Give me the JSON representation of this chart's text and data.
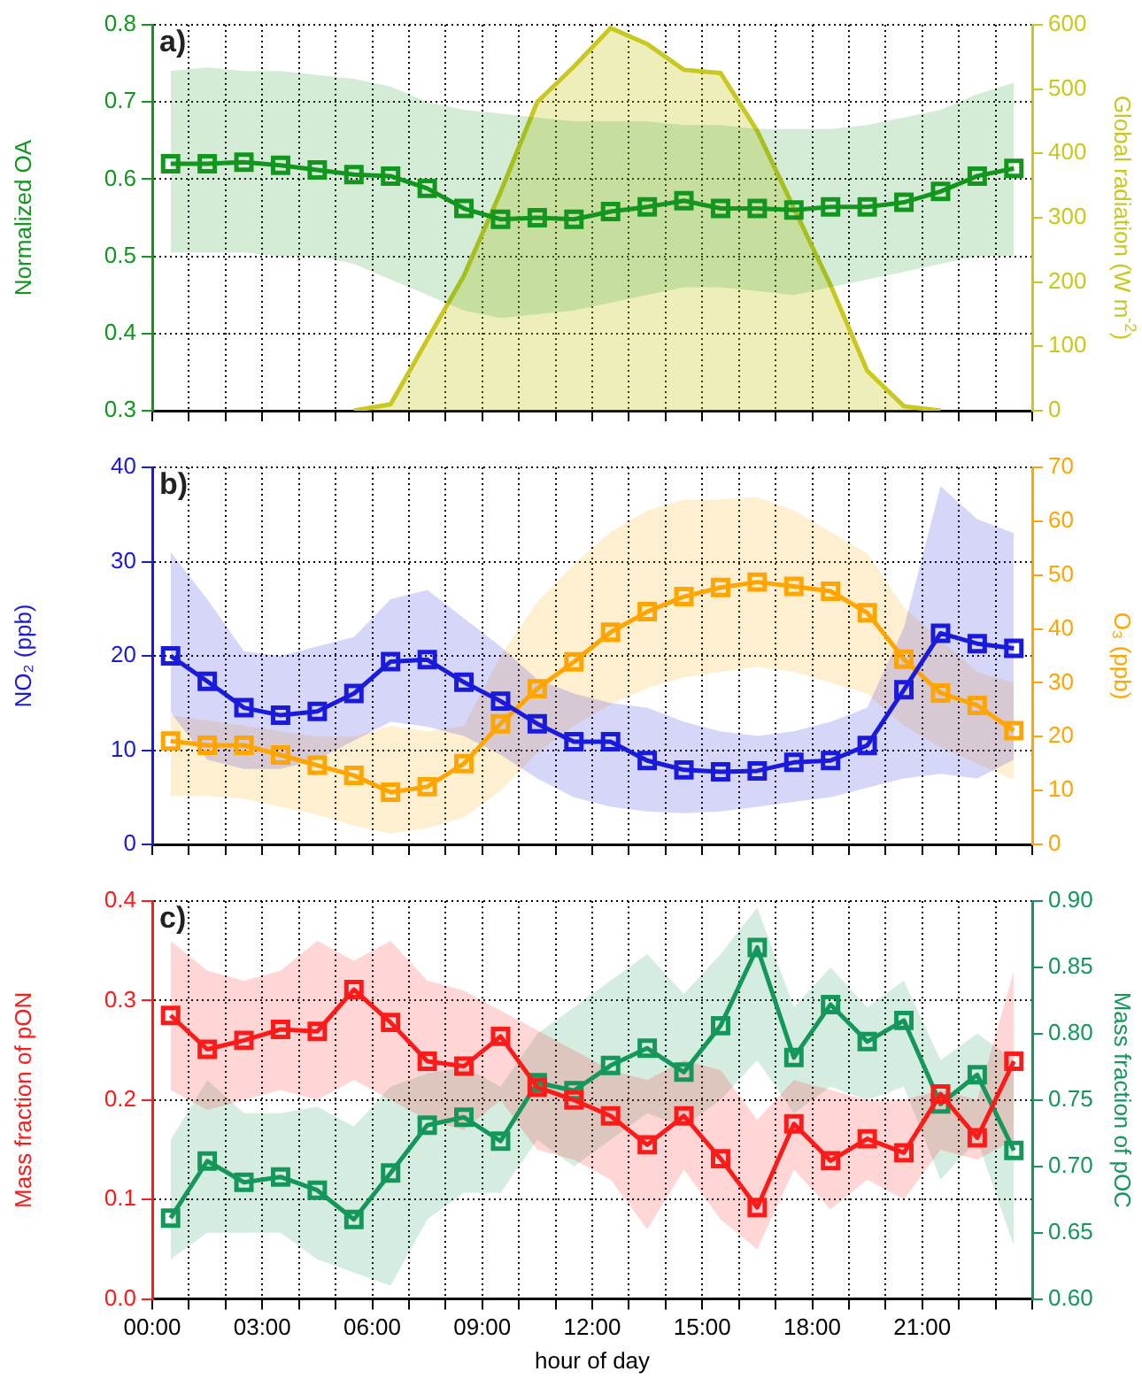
{
  "chart_data": [
    {
      "type": "line",
      "ylabel": "Normalized OA",
      "y2label": "Global radiation (W m$^{-2}$)",
      "annotations": [
        "a)"
      ],
      "x": [
        0.5,
        1.5,
        2.5,
        3.5,
        4.5,
        5.5,
        6.5,
        7.5,
        8.5,
        9.5,
        10.5,
        11.5,
        12.5,
        13.5,
        14.5,
        15.5,
        16.5,
        17.5,
        18.5,
        19.5,
        20.5,
        21.5,
        22.5,
        23.5
      ],
      "xlim": [
        0,
        24
      ],
      "xticks": [
        {
          "value": 0,
          "label": null
        },
        {
          "value": 1,
          "label": null
        },
        {
          "value": 2,
          "label": null
        },
        {
          "value": 3,
          "label": null
        },
        {
          "value": 4,
          "label": null
        },
        {
          "value": 5,
          "label": null
        },
        {
          "value": 6,
          "label": null
        },
        {
          "value": 7,
          "label": null
        },
        {
          "value": 8,
          "label": null
        },
        {
          "value": 9,
          "label": null
        },
        {
          "value": 10,
          "label": null
        },
        {
          "value": 11,
          "label": null
        },
        {
          "value": 12,
          "label": null
        },
        {
          "value": 13,
          "label": null
        },
        {
          "value": 14,
          "label": null
        },
        {
          "value": 15,
          "label": null
        },
        {
          "value": 16,
          "label": null
        },
        {
          "value": 17,
          "label": null
        },
        {
          "value": 18,
          "label": null
        },
        {
          "value": 19,
          "label": null
        },
        {
          "value": 20,
          "label": null
        },
        {
          "value": 21,
          "label": null
        },
        {
          "value": 22,
          "label": null
        },
        {
          "value": 23,
          "label": null
        },
        {
          "value": 24,
          "label": null
        }
      ],
      "ylim": [
        0.3,
        0.8
      ],
      "yticks": [
        0.3,
        0.4,
        0.5,
        0.6,
        0.7,
        0.8
      ],
      "y2lim": [
        0,
        600
      ],
      "y2ticks": [
        0,
        100,
        200,
        300,
        400,
        500,
        600
      ],
      "grid": true,
      "legend": false,
      "tick_labels": "y",
      "series": [
        {
          "type": "area",
          "axis": "y2",
          "marker": "none",
          "color": "#c8c81e",
          "x": [
            5.5,
            6.5,
            7.5,
            8.5,
            9.5,
            10.5,
            11.5,
            12.5,
            13.5,
            14.5,
            15.5,
            16.5,
            17.5,
            18.5,
            19.5,
            20.5,
            21.5
          ],
          "values": [
            0,
            10,
            110,
            210,
            340,
            480,
            535,
            595,
            570,
            530,
            525,
            435,
            315,
            195,
            62,
            7,
            0
          ]
        },
        {
          "type": "line",
          "axis": "y",
          "marker": "square",
          "color": "#12961e",
          "values": [
            0.62,
            0.62,
            0.622,
            0.618,
            0.612,
            0.606,
            0.604,
            0.588,
            0.562,
            0.548,
            0.55,
            0.548,
            0.558,
            0.564,
            0.572,
            0.562,
            0.562,
            0.56,
            0.564,
            0.564,
            0.57,
            0.584,
            0.604,
            0.614
          ],
          "lower": [
            0.505,
            0.505,
            0.505,
            0.5,
            0.5,
            0.49,
            0.47,
            0.45,
            0.43,
            0.42,
            0.425,
            0.43,
            0.44,
            0.45,
            0.46,
            0.46,
            0.455,
            0.45,
            0.46,
            0.47,
            0.48,
            0.49,
            0.5,
            0.5
          ],
          "upper": [
            0.74,
            0.745,
            0.74,
            0.74,
            0.735,
            0.73,
            0.72,
            0.7,
            0.69,
            0.685,
            0.68,
            0.675,
            0.675,
            0.675,
            0.67,
            0.67,
            0.665,
            0.665,
            0.665,
            0.67,
            0.68,
            0.69,
            0.71,
            0.725
          ]
        }
      ]
    },
    {
      "type": "line",
      "ylabel": "NO₂ (ppb)",
      "y2label": "O₃ (ppb)",
      "annotations": [
        "b)"
      ],
      "x": [
        0.5,
        1.5,
        2.5,
        3.5,
        4.5,
        5.5,
        6.5,
        7.5,
        8.5,
        9.5,
        10.5,
        11.5,
        12.5,
        13.5,
        14.5,
        15.5,
        16.5,
        17.5,
        18.5,
        19.5,
        20.5,
        21.5,
        22.5,
        23.5
      ],
      "xlim": [
        0,
        24
      ],
      "xticks": [
        {
          "value": 0,
          "label": null
        },
        {
          "value": 1,
          "label": null
        },
        {
          "value": 2,
          "label": null
        },
        {
          "value": 3,
          "label": null
        },
        {
          "value": 4,
          "label": null
        },
        {
          "value": 5,
          "label": null
        },
        {
          "value": 6,
          "label": null
        },
        {
          "value": 7,
          "label": null
        },
        {
          "value": 8,
          "label": null
        },
        {
          "value": 9,
          "label": null
        },
        {
          "value": 10,
          "label": null
        },
        {
          "value": 11,
          "label": null
        },
        {
          "value": 12,
          "label": null
        },
        {
          "value": 13,
          "label": null
        },
        {
          "value": 14,
          "label": null
        },
        {
          "value": 15,
          "label": null
        },
        {
          "value": 16,
          "label": null
        },
        {
          "value": 17,
          "label": null
        },
        {
          "value": 18,
          "label": null
        },
        {
          "value": 19,
          "label": null
        },
        {
          "value": 20,
          "label": null
        },
        {
          "value": 21,
          "label": null
        },
        {
          "value": 22,
          "label": null
        },
        {
          "value": 23,
          "label": null
        },
        {
          "value": 24,
          "label": null
        }
      ],
      "ylim": [
        0,
        40
      ],
      "yticks": [
        0,
        10,
        20,
        30,
        40
      ],
      "y2lim": [
        0,
        70
      ],
      "y2ticks": [
        0,
        10,
        20,
        30,
        40,
        50,
        60,
        70
      ],
      "grid": true,
      "legend": false,
      "tick_labels": "y",
      "series": [
        {
          "type": "line",
          "axis": "y",
          "marker": "square",
          "color": "#1a1adc",
          "values": [
            20,
            17.3,
            14.5,
            13.7,
            14.1,
            16,
            19.4,
            19.6,
            17.2,
            15.2,
            12.8,
            10.9,
            10.9,
            8.9,
            7.9,
            7.7,
            7.8,
            8.7,
            8.9,
            10.5,
            16.4,
            22.4,
            21.3,
            20.8
          ],
          "lower": [
            14,
            9,
            8,
            8,
            9,
            11,
            13,
            12.5,
            11.5,
            9.5,
            7,
            5,
            4,
            3.5,
            3.3,
            3.5,
            4,
            4.5,
            5,
            6,
            7,
            7.5,
            7,
            9
          ],
          "upper": [
            31,
            26,
            20.5,
            20,
            21,
            22,
            26,
            27,
            24,
            21,
            17.5,
            16,
            15,
            14.5,
            13,
            12,
            11.5,
            12,
            13,
            14.5,
            23,
            38,
            34.5,
            33
          ]
        },
        {
          "type": "line",
          "axis": "y2",
          "marker": "square",
          "color": "#ffa500",
          "values": [
            19.2,
            18.4,
            18.4,
            16.6,
            14.7,
            12.8,
            9.7,
            10.7,
            15,
            22.4,
            28.9,
            33.9,
            39.4,
            43.2,
            46,
            47.7,
            48.7,
            47.9,
            47,
            43,
            34.4,
            28.1,
            25.8,
            21.1
          ],
          "lower": [
            9,
            9,
            8.5,
            7,
            5.5,
            3.5,
            2,
            3,
            5,
            10,
            17,
            22,
            26,
            29,
            31,
            32,
            33,
            32,
            30,
            28,
            22,
            18,
            15,
            12
          ],
          "upper": [
            24,
            23,
            22,
            21,
            20,
            20,
            22,
            21,
            22,
            35,
            45,
            52,
            58,
            62,
            64,
            64,
            64.5,
            62,
            58,
            54,
            44,
            38,
            32,
            30
          ]
        }
      ]
    },
    {
      "type": "line",
      "xlabel": "hour of day",
      "ylabel": "Mass fraction of pON",
      "y2label": "Mass fraction of pOC",
      "annotations": [
        "c)"
      ],
      "x": [
        0.5,
        1.5,
        2.5,
        3.5,
        4.5,
        5.5,
        6.5,
        7.5,
        8.5,
        9.5,
        10.5,
        11.5,
        12.5,
        13.5,
        14.5,
        15.5,
        16.5,
        17.5,
        18.5,
        19.5,
        20.5,
        21.5,
        22.5,
        23.5
      ],
      "xlim": [
        0,
        24
      ],
      "xticks": [
        {
          "value": 0,
          "label": "00:00"
        },
        {
          "value": 1,
          "label": null
        },
        {
          "value": 2,
          "label": null
        },
        {
          "value": 3,
          "label": "03:00"
        },
        {
          "value": 4,
          "label": null
        },
        {
          "value": 5,
          "label": null
        },
        {
          "value": 6,
          "label": "06:00"
        },
        {
          "value": 7,
          "label": null
        },
        {
          "value": 8,
          "label": null
        },
        {
          "value": 9,
          "label": "09:00"
        },
        {
          "value": 10,
          "label": null
        },
        {
          "value": 11,
          "label": null
        },
        {
          "value": 12,
          "label": "12:00"
        },
        {
          "value": 13,
          "label": null
        },
        {
          "value": 14,
          "label": null
        },
        {
          "value": 15,
          "label": "15:00"
        },
        {
          "value": 16,
          "label": null
        },
        {
          "value": 17,
          "label": null
        },
        {
          "value": 18,
          "label": "18:00"
        },
        {
          "value": 19,
          "label": null
        },
        {
          "value": 20,
          "label": null
        },
        {
          "value": 21,
          "label": "21:00"
        },
        {
          "value": 22,
          "label": null
        },
        {
          "value": 23,
          "label": null
        },
        {
          "value": 24,
          "label": null
        }
      ],
      "ylim": [
        0,
        0.4
      ],
      "yticks": [
        {
          "value": 0,
          "label": "0.0"
        },
        0.1,
        0.2,
        0.3,
        0.4
      ],
      "y2lim": [
        0.6,
        0.9
      ],
      "y2ticks": [
        {
          "value": 0.6,
          "label": "0.60"
        },
        {
          "value": 0.65,
          "label": "0.65"
        },
        {
          "value": 0.7,
          "label": "0.70"
        },
        {
          "value": 0.75,
          "label": "0.75"
        },
        {
          "value": 0.8,
          "label": "0.80"
        },
        {
          "value": 0.85,
          "label": "0.85"
        },
        {
          "value": 0.9,
          "label": "0.90"
        }
      ],
      "grid": true,
      "legend": false,
      "series": [
        {
          "type": "line",
          "axis": "y",
          "marker": "square",
          "color": "#ff1a1a",
          "values": [
            0.285,
            0.251,
            0.26,
            0.271,
            0.269,
            0.311,
            0.278,
            0.239,
            0.234,
            0.264,
            0.213,
            0.2,
            0.184,
            0.155,
            0.184,
            0.141,
            0.092,
            0.176,
            0.139,
            0.161,
            0.147,
            0.206,
            0.162,
            0.239
          ],
          "lower": [
            0.21,
            0.19,
            0.2,
            0.21,
            0.2,
            0.22,
            0.2,
            0.18,
            0.17,
            0.2,
            0.15,
            0.14,
            0.12,
            0.07,
            0.13,
            0.08,
            0.05,
            0.13,
            0.09,
            0.12,
            0.1,
            0.15,
            0.14,
            0.16
          ],
          "upper": [
            0.36,
            0.33,
            0.32,
            0.33,
            0.36,
            0.34,
            0.36,
            0.32,
            0.31,
            0.29,
            0.27,
            0.25,
            0.23,
            0.22,
            0.24,
            0.23,
            0.18,
            0.22,
            0.21,
            0.2,
            0.2,
            0.21,
            0.2,
            0.33
          ]
        },
        {
          "type": "line",
          "axis": "y2",
          "marker": "square",
          "color": "#14975a",
          "values": [
            0.661,
            0.704,
            0.688,
            0.692,
            0.682,
            0.66,
            0.695,
            0.731,
            0.737,
            0.719,
            0.763,
            0.757,
            0.776,
            0.789,
            0.771,
            0.806,
            0.865,
            0.782,
            0.822,
            0.794,
            0.81,
            0.747,
            0.769,
            0.712
          ],
          "lower": [
            0.63,
            0.65,
            0.65,
            0.65,
            0.63,
            0.62,
            0.61,
            0.66,
            0.68,
            0.68,
            0.72,
            0.7,
            0.72,
            0.74,
            0.73,
            0.75,
            0.78,
            0.74,
            0.76,
            0.75,
            0.76,
            0.69,
            0.72,
            0.64
          ],
          "upper": [
            0.72,
            0.765,
            0.74,
            0.74,
            0.745,
            0.73,
            0.76,
            0.77,
            0.775,
            0.76,
            0.8,
            0.82,
            0.84,
            0.86,
            0.83,
            0.86,
            0.895,
            0.82,
            0.85,
            0.82,
            0.84,
            0.78,
            0.8,
            0.78
          ]
        }
      ]
    }
  ]
}
